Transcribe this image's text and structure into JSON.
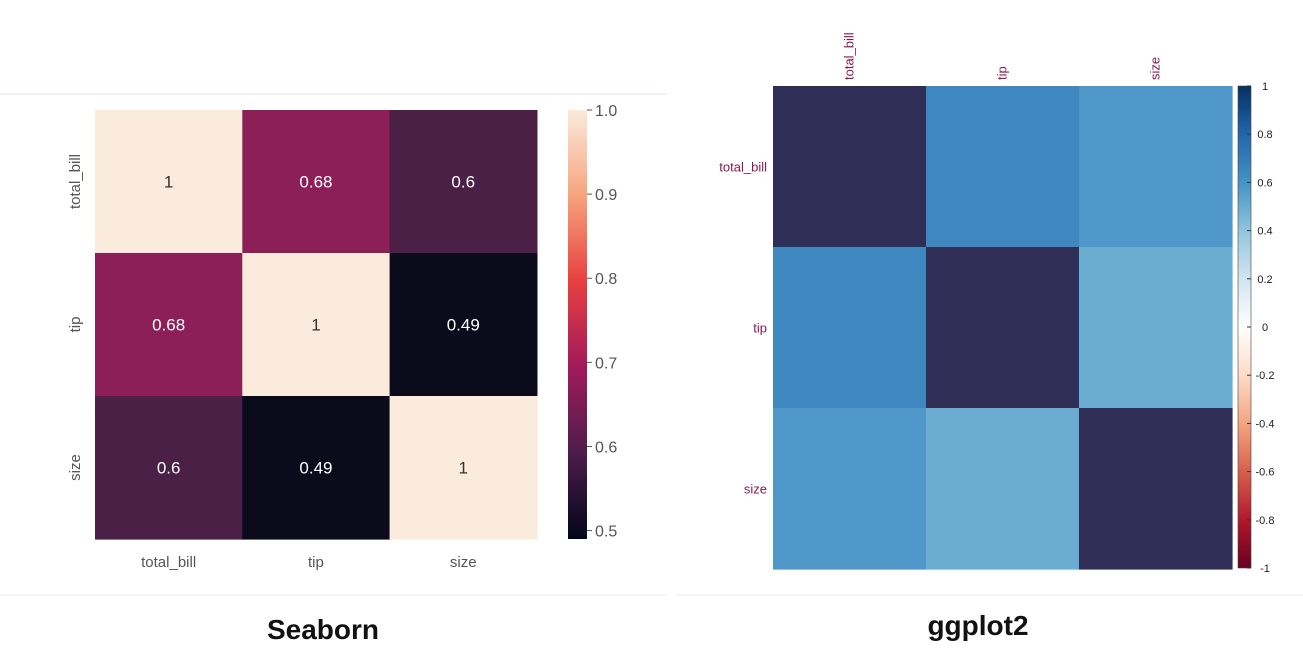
{
  "captions": {
    "left": "Seaborn",
    "right": "ggplot2"
  },
  "chart_data": [
    {
      "type": "heatmap",
      "variables": [
        "total_bill",
        "tip",
        "size"
      ],
      "rows": [
        "total_bill",
        "tip",
        "size"
      ],
      "cols": [
        "total_bill",
        "tip",
        "size"
      ],
      "values": [
        [
          1,
          0.68,
          0.6
        ],
        [
          0.68,
          1,
          0.49
        ],
        [
          0.6,
          0.49,
          1
        ]
      ],
      "annotations": [
        [
          "1",
          "0.68",
          "0.6"
        ],
        [
          "0.68",
          "1",
          "0.49"
        ],
        [
          "0.6",
          "0.49",
          "1"
        ]
      ],
      "colorbar": {
        "range": [
          0.49,
          1.0
        ],
        "ticks": [
          1.0,
          0.9,
          0.8,
          0.7,
          0.6,
          0.5
        ],
        "tick_labels": [
          "1.0",
          "0.9",
          "0.8",
          "0.7",
          "0.6",
          "0.5"
        ],
        "stops": [
          "#03051a",
          "#4c1d4b",
          "#a11a5b",
          "#e83f3f",
          "#f6a47c",
          "#faebdd"
        ],
        "position": "right"
      },
      "cell_colors": [
        [
          "#faebdd",
          "#8c1f58",
          "#4b2047"
        ],
        [
          "#8c1f58",
          "#faebdd",
          "#0c0b1c"
        ],
        [
          "#4b2047",
          "#0c0b1c",
          "#faebdd"
        ]
      ],
      "text_colors": [
        [
          "#333333",
          "#ffffff",
          "#ffffff"
        ],
        [
          "#ffffff",
          "#333333",
          "#ffffff"
        ],
        [
          "#ffffff",
          "#ffffff",
          "#333333"
        ]
      ],
      "grid": false,
      "axis_text_color": "#555555"
    },
    {
      "type": "heatmap",
      "variables": [
        "total_bill",
        "tip",
        "size"
      ],
      "rows": [
        "total_bill",
        "tip",
        "size"
      ],
      "cols": [
        "total_bill",
        "tip",
        "size"
      ],
      "values": [
        [
          1,
          0.68,
          0.6
        ],
        [
          0.68,
          1,
          0.49
        ],
        [
          0.6,
          0.49,
          1
        ]
      ],
      "x_labels_position": "top",
      "colorbar": {
        "range": [
          -1,
          1
        ],
        "ticks": [
          1,
          0.8,
          0.6,
          0.4,
          0.2,
          0,
          -0.2,
          -0.4,
          -0.6,
          -0.8,
          -1
        ],
        "tick_labels": [
          "1",
          "0.8",
          "0.6",
          "0.4",
          "0.2",
          "0",
          "-0.2",
          "-0.4",
          "-0.6",
          "-0.8",
          "-1"
        ],
        "stops": [
          "#67001f",
          "#b2182b",
          "#d6604d",
          "#f4a582",
          "#fddbc7",
          "#ffffff",
          "#d1e5f0",
          "#92c5de",
          "#4393c3",
          "#2166ac",
          "#053061"
        ],
        "position": "right"
      },
      "cell_colors": [
        [
          "#2e2e57",
          "#3e88bf",
          "#4f97c9"
        ],
        [
          "#3e88bf",
          "#2e2e57",
          "#6aadd0"
        ],
        [
          "#4f97c9",
          "#6aadd0",
          "#2e2e57"
        ]
      ],
      "grid": false,
      "row_label_color": "#8b1a4a",
      "col_label_color": "#8b1a4a"
    }
  ]
}
